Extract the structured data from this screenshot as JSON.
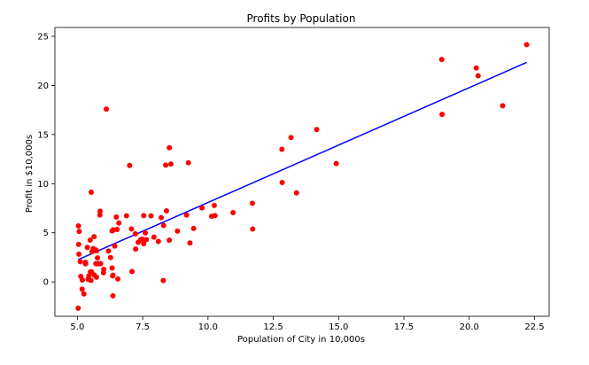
{
  "chart_data": {
    "type": "scatter",
    "title": "Profits by Population",
    "xlabel": "Population of City in 10,000s",
    "ylabel": "Profit in $10,000s",
    "xlim": [
      4.14,
      23.06
    ],
    "ylim": [
      -3.5,
      25.9
    ],
    "xticks": [
      5.0,
      7.5,
      10.0,
      12.5,
      15.0,
      17.5,
      20.0,
      22.5
    ],
    "xtick_labels": [
      "5.0",
      "7.5",
      "10.0",
      "12.5",
      "15.0",
      "17.5",
      "20.0",
      "22.5"
    ],
    "yticks": [
      0,
      5,
      10,
      15,
      20,
      25
    ],
    "ytick_labels": [
      "0",
      "5",
      "10",
      "15",
      "20",
      "25"
    ],
    "grid": false,
    "colors": {
      "points": "#ff0000",
      "fit_line": "#0000ff"
    },
    "series": [
      {
        "type": "scatter",
        "x": [
          6.11,
          5.53,
          8.52,
          7.0,
          5.86,
          8.38,
          7.48,
          8.58,
          6.49,
          5.05,
          5.71,
          14.16,
          5.73,
          8.41,
          5.64,
          5.38,
          6.37,
          5.13,
          6.43,
          7.07,
          6.19,
          20.27,
          5.49,
          6.33,
          5.56,
          18.95,
          12.83,
          10.96,
          13.18,
          22.2,
          5.25,
          6.59,
          9.25,
          5.89,
          8.21,
          7.93,
          8.1,
          5.61,
          12.84,
          6.35,
          5.41,
          6.88,
          11.71,
          5.77,
          7.82,
          7.09,
          5.07,
          5.8,
          11.7,
          5.54,
          7.54,
          5.31,
          7.42,
          7.6,
          6.33,
          6.36,
          6.27,
          5.64,
          9.31,
          9.45,
          8.83,
          5.18,
          21.28,
          14.91,
          18.96,
          7.22,
          8.3,
          10.24,
          5.5,
          20.34,
          10.14,
          7.33,
          6.01,
          7.23,
          5.03,
          6.55,
          7.54,
          5.04,
          10.27,
          5.11,
          5.73,
          5.19,
          6.36,
          9.77,
          6.52,
          8.52,
          9.18,
          6.0,
          5.52,
          5.06,
          5.71,
          7.64,
          5.87,
          5.31,
          8.29,
          13.39,
          5.44
        ],
        "y": [
          17.59,
          9.13,
          13.66,
          11.85,
          6.82,
          11.89,
          4.35,
          12.0,
          6.6,
          3.82,
          3.25,
          15.51,
          3.16,
          7.23,
          0.72,
          3.51,
          5.3,
          0.56,
          3.65,
          5.39,
          3.14,
          21.77,
          4.26,
          5.19,
          3.08,
          22.64,
          13.5,
          7.05,
          14.69,
          24.15,
          -1.22,
          5.99,
          12.13,
          1.85,
          6.54,
          4.56,
          4.12,
          3.39,
          10.12,
          0.6,
          0.26,
          6.73,
          5.38,
          2.44,
          6.73,
          1.05,
          5.13,
          1.84,
          8.0,
          1.02,
          6.75,
          1.84,
          4.29,
          4.99,
          1.42,
          -1.42,
          2.48,
          4.6,
          3.96,
          5.44,
          5.17,
          -0.74,
          17.93,
          12.05,
          17.05,
          4.89,
          5.74,
          7.78,
          1.02,
          20.99,
          6.68,
          4.03,
          1.28,
          3.34,
          -2.68,
          0.3,
          3.88,
          5.7,
          6.75,
          2.06,
          0.48,
          0.2,
          0.68,
          7.54,
          5.34,
          4.24,
          6.8,
          0.93,
          0.15,
          2.82,
          1.85,
          4.3,
          7.2,
          1.99,
          0.14,
          9.06,
          0.62
        ]
      },
      {
        "type": "line",
        "x": [
          5.03,
          22.2
        ],
        "y": [
          2.27,
          22.34
        ]
      }
    ]
  }
}
